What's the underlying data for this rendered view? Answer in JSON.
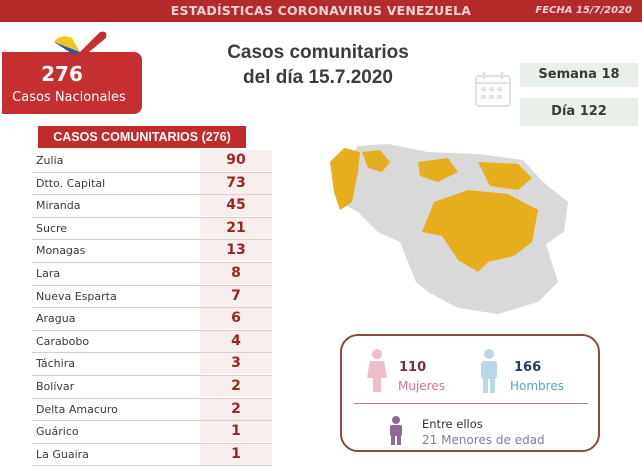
{
  "header": {
    "title": "ESTADÍSTICAS CORONAVIRUS VENEZUELA",
    "date": "FECHA 15/7/2020"
  },
  "national": {
    "count": "276",
    "label": "Casos Nacionales"
  },
  "main_title": {
    "line1": "Casos comunitarios",
    "line2": "del día 15.7.2020"
  },
  "calendar": {
    "week": "Semana 18",
    "day": "Día 122"
  },
  "table": {
    "header": "CASOS COMUNITARIOS (276)",
    "rows": [
      {
        "state": "Zulia",
        "value": "90"
      },
      {
        "state": "Dtto. Capital",
        "value": "73"
      },
      {
        "state": "Miranda",
        "value": "45"
      },
      {
        "state": "Sucre",
        "value": "21"
      },
      {
        "state": "Monagas",
        "value": "13"
      },
      {
        "state": "Lara",
        "value": "8"
      },
      {
        "state": "Nueva Esparta",
        "value": "7"
      },
      {
        "state": "Aragua",
        "value": "6"
      },
      {
        "state": "Carabobo",
        "value": "4"
      },
      {
        "state": "Táchira",
        "value": "3"
      },
      {
        "state": "Bolívar",
        "value": "2"
      },
      {
        "state": "Delta Amacuro",
        "value": "2"
      },
      {
        "state": "Guárico",
        "value": "1"
      },
      {
        "state": "La Guaira",
        "value": "1"
      }
    ]
  },
  "gender": {
    "women_count": "110",
    "women_label": "Mujeres",
    "men_count": "166",
    "men_label": "Hombres",
    "minors_intro": "Entre ellos",
    "minors_text": "21 Menores de edad"
  },
  "colors": {
    "brand_red": "#c02c2c",
    "map_highlight": "#e6ad1c",
    "map_base": "#d9d9d9",
    "women": "#f2bcc8",
    "men": "#b8d8e8",
    "minors": "#8e6a94"
  },
  "icons": {
    "logo": "venezuela-heart-icon",
    "calendar": "calendar-icon",
    "women": "female-icon",
    "men": "male-icon",
    "minors": "child-icon"
  }
}
